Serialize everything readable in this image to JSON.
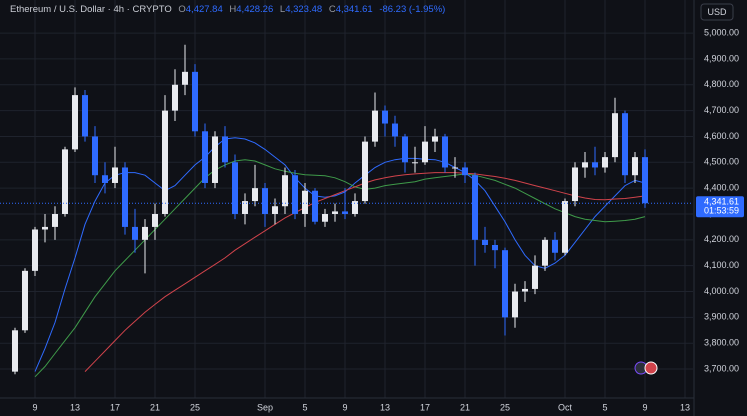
{
  "chart_data": {
    "type": "candlestick",
    "title": "Ethereum / U.S. Dollar · 4h · CRYPTO",
    "ohlc_legend": [
      {
        "label": "O",
        "value": "4,427.84"
      },
      {
        "label": "H",
        "value": "4,428.26"
      },
      {
        "label": "L",
        "value": "4,323.48"
      },
      {
        "label": "C",
        "value": "4,341.61"
      }
    ],
    "change": "-86.23 (-1.95%)",
    "currency": "USD",
    "last_price": {
      "value": 4341.61,
      "label": "4,341.61"
    },
    "countdown": "01:53:59",
    "up_color": "#e8eaef",
    "down_color": "#2f6bff",
    "ohlc": [
      [
        3690,
        3860,
        3680,
        3850
      ],
      [
        3850,
        4090,
        3840,
        4080
      ],
      [
        4080,
        4250,
        4060,
        4240
      ],
      [
        4240,
        4300,
        4190,
        4250
      ],
      [
        4250,
        4330,
        4200,
        4300
      ],
      [
        4300,
        4560,
        4290,
        4550
      ],
      [
        4550,
        4790,
        4540,
        4760
      ],
      [
        4760,
        4780,
        4580,
        4600
      ],
      [
        4600,
        4640,
        4420,
        4450
      ],
      [
        4450,
        4500,
        4380,
        4420
      ],
      [
        4420,
        4560,
        4400,
        4480
      ],
      [
        4480,
        4500,
        4220,
        4250
      ],
      [
        4250,
        4320,
        4150,
        4200
      ],
      [
        4200,
        4280,
        4070,
        4250
      ],
      [
        4250,
        4340,
        4200,
        4300
      ],
      [
        4300,
        4760,
        4290,
        4700
      ],
      [
        4700,
        4860,
        4660,
        4800
      ],
      [
        4800,
        4955,
        4760,
        4850
      ],
      [
        4850,
        4880,
        4600,
        4620
      ],
      [
        4620,
        4650,
        4400,
        4420
      ],
      [
        4420,
        4620,
        4400,
        4600
      ],
      [
        4600,
        4640,
        4480,
        4500
      ],
      [
        4500,
        4530,
        4280,
        4300
      ],
      [
        4300,
        4380,
        4260,
        4350
      ],
      [
        4350,
        4490,
        4330,
        4400
      ],
      [
        4400,
        4420,
        4250,
        4300
      ],
      [
        4300,
        4360,
        4260,
        4330
      ],
      [
        4330,
        4480,
        4300,
        4450
      ],
      [
        4450,
        4470,
        4280,
        4300
      ],
      [
        4300,
        4420,
        4250,
        4390
      ],
      [
        4390,
        4400,
        4260,
        4270
      ],
      [
        4270,
        4320,
        4250,
        4300
      ],
      [
        4300,
        4340,
        4270,
        4310
      ],
      [
        4310,
        4400,
        4280,
        4300
      ],
      [
        4300,
        4380,
        4290,
        4350
      ],
      [
        4350,
        4600,
        4340,
        4580
      ],
      [
        4580,
        4770,
        4560,
        4700
      ],
      [
        4700,
        4720,
        4600,
        4650
      ],
      [
        4650,
        4680,
        4560,
        4600
      ],
      [
        4600,
        4610,
        4460,
        4500
      ],
      [
        4500,
        4560,
        4460,
        4500
      ],
      [
        4500,
        4640,
        4490,
        4580
      ],
      [
        4580,
        4630,
        4540,
        4600
      ],
      [
        4600,
        4610,
        4460,
        4480
      ],
      [
        4480,
        4520,
        4440,
        4480
      ],
      [
        4480,
        4500,
        4420,
        4450
      ],
      [
        4450,
        4460,
        4100,
        4200
      ],
      [
        4200,
        4250,
        4150,
        4180
      ],
      [
        4180,
        4200,
        4090,
        4160
      ],
      [
        4160,
        4170,
        3830,
        3900
      ],
      [
        3900,
        4030,
        3860,
        4000
      ],
      [
        4000,
        4040,
        3960,
        4010
      ],
      [
        4010,
        4140,
        3990,
        4100
      ],
      [
        4100,
        4210,
        4080,
        4200
      ],
      [
        4200,
        4230,
        4120,
        4150
      ],
      [
        4150,
        4360,
        4140,
        4350
      ],
      [
        4350,
        4500,
        4330,
        4480
      ],
      [
        4480,
        4540,
        4440,
        4500
      ],
      [
        4500,
        4560,
        4450,
        4480
      ],
      [
        4480,
        4540,
        4460,
        4520
      ],
      [
        4520,
        4750,
        4500,
        4690
      ],
      [
        4690,
        4700,
        4420,
        4450
      ],
      [
        4450,
        4540,
        4420,
        4520
      ],
      [
        4520,
        4550,
        4323.48,
        4341.61
      ]
    ],
    "series": [
      {
        "color": "#2f6bff",
        "values": [
          null,
          null,
          3690,
          3780,
          3880,
          4010,
          4130,
          4260,
          4350,
          4420,
          4450,
          4460,
          4460,
          4450,
          4420,
          4390,
          4410,
          4450,
          4490,
          4520,
          4560,
          4590,
          4595,
          4590,
          4575,
          4550,
          4520,
          4490,
          4440,
          4400,
          4370,
          4365,
          4370,
          4385,
          4420,
          4450,
          4480,
          4500,
          4510,
          4515,
          4515,
          4512,
          4510,
          4500,
          4480,
          4460,
          4430,
          4390,
          4330,
          4270,
          4200,
          4140,
          4100,
          4090,
          4110,
          4140,
          4190,
          4240,
          4290,
          4330,
          4370,
          4410,
          4430,
          4420
        ]
      },
      {
        "color": "#3f9b4a",
        "values": [
          null,
          null,
          3670,
          3710,
          3760,
          3810,
          3860,
          3920,
          3980,
          4030,
          4080,
          4120,
          4160,
          4200,
          4240,
          4280,
          4320,
          4360,
          4400,
          4440,
          4470,
          4490,
          4505,
          4510,
          4505,
          4490,
          4475,
          4465,
          4458,
          4452,
          4450,
          4448,
          4440,
          4425,
          4405,
          4395,
          4400,
          4410,
          4415,
          4420,
          4425,
          4435,
          4440,
          4445,
          4450,
          4455,
          4450,
          4440,
          4430,
          4415,
          4400,
          4380,
          4360,
          4340,
          4320,
          4305,
          4290,
          4280,
          4275,
          4270,
          4272,
          4275,
          4280,
          4290
        ]
      },
      {
        "color": "#d0434b",
        "values": [
          null,
          null,
          null,
          null,
          null,
          null,
          null,
          3690,
          3730,
          3770,
          3810,
          3850,
          3885,
          3920,
          3950,
          3980,
          4005,
          4030,
          4055,
          4080,
          4105,
          4130,
          4160,
          4185,
          4210,
          4235,
          4260,
          4285,
          4305,
          4325,
          4345,
          4360,
          4375,
          4390,
          4405,
          4420,
          4432,
          4440,
          4447,
          4452,
          4455,
          4458,
          4460,
          4460,
          4460,
          4458,
          4455,
          4450,
          4445,
          4438,
          4430,
          4420,
          4410,
          4400,
          4390,
          4380,
          4370,
          4362,
          4356,
          4355,
          4358,
          4360,
          4365,
          4370
        ]
      }
    ],
    "xlim": [
      -1.5,
      67.8
    ],
    "xticks": [
      {
        "value": 2,
        "label": "9"
      },
      {
        "value": 6,
        "label": "13"
      },
      {
        "value": 10,
        "label": "17"
      },
      {
        "value": 14,
        "label": "21"
      },
      {
        "value": 18,
        "label": "25"
      },
      {
        "value": 25,
        "label": "Sep"
      },
      {
        "value": 29,
        "label": "5"
      },
      {
        "value": 33,
        "label": "9"
      },
      {
        "value": 37,
        "label": "13"
      },
      {
        "value": 41,
        "label": "17"
      },
      {
        "value": 45,
        "label": "21"
      },
      {
        "value": 49,
        "label": "25"
      },
      {
        "value": 55,
        "label": "Oct"
      },
      {
        "value": 59,
        "label": "5"
      },
      {
        "value": 63,
        "label": "9"
      },
      {
        "value": 67,
        "label": "13"
      }
    ],
    "ylim": [
      3588,
      5128
    ],
    "yticks": [
      {
        "value": 3700,
        "label": "3,700.00"
      },
      {
        "value": 3800,
        "label": "3,800.00"
      },
      {
        "value": 3900,
        "label": "3,900.00"
      },
      {
        "value": 4000,
        "label": "4,000.00"
      },
      {
        "value": 4100,
        "label": "4,100.00"
      },
      {
        "value": 4200,
        "label": "4,200.00"
      },
      {
        "value": 4300,
        "label": "4,300.00"
      },
      {
        "value": 4400,
        "label": "4,400.00"
      },
      {
        "value": 4500,
        "label": "4,500.00"
      },
      {
        "value": 4600,
        "label": "4,600.00"
      },
      {
        "value": 4700,
        "label": "4,700.00"
      },
      {
        "value": 4800,
        "label": "4,800.00"
      },
      {
        "value": 4900,
        "label": "4,900.00"
      },
      {
        "value": 5000,
        "label": "5,000.00"
      }
    ],
    "grid": true
  }
}
